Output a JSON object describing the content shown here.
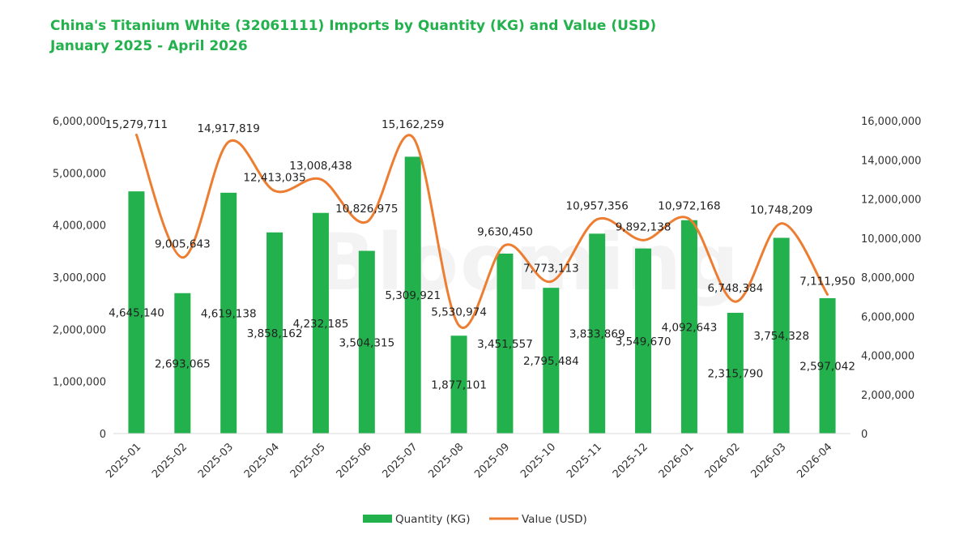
{
  "title": "China's Titanium White (32061111) Imports by Quantity (KG) and Value (USD)",
  "subtitle": "January 2025 - April 2026",
  "watermark": "Blooming",
  "colors": {
    "title": "#22b14c",
    "bar": "#22b14c",
    "line": "#ed7d31"
  },
  "chart_data": {
    "type": "bar",
    "title": "China's Titanium White (32061111) Imports by Quantity (KG) and Value (USD)",
    "subtitle": "January 2025 - April 2026",
    "categories": [
      "2025-01",
      "2025-02",
      "2025-03",
      "2025-04",
      "2025-05",
      "2025-06",
      "2025-07",
      "2025-08",
      "2025-09",
      "2025-10",
      "2025-11",
      "2025-12",
      "2026-01",
      "2026-02",
      "2026-03",
      "2026-04"
    ],
    "series": [
      {
        "name": "Quantity (KG)",
        "type": "bar",
        "axis": "left",
        "values": [
          4645140,
          2693065,
          4619138,
          3858162,
          4232185,
          3504315,
          5309921,
          1877101,
          3451557,
          2795484,
          3833869,
          3549670,
          4092643,
          2315790,
          3754328,
          2597042
        ],
        "labels": [
          "4,645,140",
          "2,693,065",
          "4,619,138",
          "3,858,162",
          "4,232,185",
          "3,504,315",
          "5,309,921",
          "1,877,101",
          "3,451,557",
          "2,795,484",
          "3,833,869",
          "3,549,670",
          "4,092,643",
          "2,315,790",
          "3,754,328",
          "2,597,042"
        ]
      },
      {
        "name": "Value (USD)",
        "type": "line",
        "axis": "right",
        "values": [
          15279711,
          9005643,
          14917819,
          12413035,
          13008438,
          10826975,
          15162259,
          5530974,
          9630450,
          7773113,
          10957356,
          9892138,
          10972168,
          6748384,
          10748209,
          7111950
        ],
        "labels": [
          "15,279,711",
          "9,005,643",
          "14,917,819",
          "12,413,035",
          "13,008,438",
          "10,826,975",
          "15,162,259",
          "5,530,974",
          "9,630,450",
          "7,773,113",
          "10,957,356",
          "9,892,138",
          "10,972,168",
          "6,748,384",
          "10,748,209",
          "7,111,950"
        ]
      }
    ],
    "y_left": {
      "min": 0,
      "max": 6000000,
      "ticks": [
        "0",
        "1,000,000",
        "2,000,000",
        "3,000,000",
        "4,000,000",
        "5,000,000",
        "6,000,000"
      ]
    },
    "y_right": {
      "min": 0,
      "max": 16000000,
      "ticks": [
        "0",
        "2,000,000",
        "4,000,000",
        "6,000,000",
        "8,000,000",
        "10,000,000",
        "12,000,000",
        "14,000,000",
        "16,000,000"
      ]
    },
    "grid": false,
    "legend": {
      "position": "bottom",
      "items": [
        "Quantity (KG)",
        "Value (USD)"
      ]
    }
  }
}
